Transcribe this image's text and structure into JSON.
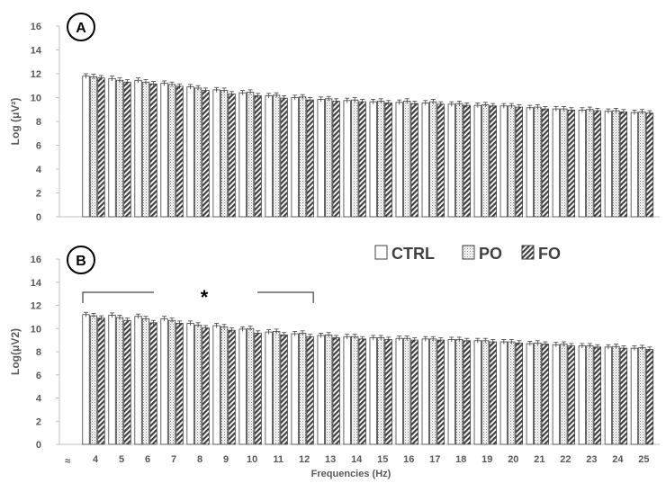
{
  "chart_data": [
    {
      "panel": "A",
      "type": "bar",
      "ylabel": "Log (μV²)",
      "ylim": [
        0,
        16
      ],
      "yticks": [
        0,
        2,
        4,
        6,
        8,
        10,
        12,
        14,
        16
      ],
      "categories": [
        "4",
        "5",
        "6",
        "7",
        "8",
        "9",
        "10",
        "11",
        "12",
        "13",
        "14",
        "15",
        "16",
        "17",
        "18",
        "19",
        "20",
        "21",
        "22",
        "23",
        "24",
        "25"
      ],
      "series": [
        {
          "name": "CTRL",
          "values": [
            11.8,
            11.6,
            11.45,
            11.2,
            10.9,
            10.65,
            10.4,
            10.15,
            10.0,
            9.85,
            9.75,
            9.65,
            9.6,
            9.55,
            9.45,
            9.35,
            9.3,
            9.15,
            9.05,
            8.95,
            8.85,
            8.75
          ]
        },
        {
          "name": "PO",
          "values": [
            11.75,
            11.45,
            11.3,
            11.1,
            10.8,
            10.6,
            10.45,
            10.2,
            10.05,
            9.9,
            9.8,
            9.7,
            9.7,
            9.65,
            9.5,
            9.4,
            9.3,
            9.2,
            9.05,
            9.0,
            8.9,
            8.8
          ]
        },
        {
          "name": "FO",
          "values": [
            11.65,
            11.3,
            11.15,
            10.95,
            10.6,
            10.3,
            10.15,
            9.95,
            9.8,
            9.7,
            9.65,
            9.55,
            9.5,
            9.45,
            9.35,
            9.3,
            9.2,
            9.05,
            8.95,
            8.9,
            8.8,
            8.7
          ]
        }
      ],
      "errors": 0.2
    },
    {
      "panel": "B",
      "type": "bar",
      "ylabel": "Log(μV2)",
      "xlabel": "Frequencies (Hz)",
      "ylim": [
        0,
        16
      ],
      "yticks": [
        0,
        2,
        4,
        6,
        8,
        10,
        12,
        14,
        16
      ],
      "axis_break": "≈",
      "categories": [
        "4",
        "5",
        "6",
        "7",
        "8",
        "9",
        "10",
        "11",
        "12",
        "13",
        "14",
        "15",
        "16",
        "17",
        "18",
        "19",
        "20",
        "21",
        "22",
        "23",
        "24",
        "25"
      ],
      "series": [
        {
          "name": "CTRL",
          "values": [
            11.2,
            11.15,
            11.05,
            10.85,
            10.45,
            10.25,
            9.95,
            9.7,
            9.55,
            9.4,
            9.3,
            9.2,
            9.15,
            9.1,
            9.05,
            8.95,
            8.85,
            8.7,
            8.6,
            8.5,
            8.4,
            8.3
          ]
        },
        {
          "name": "PO",
          "values": [
            11.1,
            10.95,
            10.85,
            10.7,
            10.3,
            10.15,
            10.0,
            9.75,
            9.6,
            9.45,
            9.3,
            9.2,
            9.15,
            9.1,
            9.05,
            8.95,
            8.85,
            8.75,
            8.65,
            8.5,
            8.45,
            8.35
          ]
        },
        {
          "name": "FO",
          "values": [
            10.9,
            10.7,
            10.5,
            10.45,
            10.05,
            9.85,
            9.6,
            9.45,
            9.3,
            9.2,
            9.1,
            9.05,
            9.0,
            9.0,
            8.95,
            8.85,
            8.75,
            8.65,
            8.5,
            8.4,
            8.3,
            8.2
          ]
        }
      ],
      "errors": 0.2,
      "significance": {
        "label": "*",
        "from": "4",
        "to": "12"
      }
    }
  ],
  "legend": {
    "position": "top-right of panel B",
    "items": [
      "CTRL",
      "PO",
      "FO"
    ]
  },
  "colors": {
    "axis": "#bfbfbf",
    "text": "#595959",
    "bar_edge": "#404040"
  }
}
